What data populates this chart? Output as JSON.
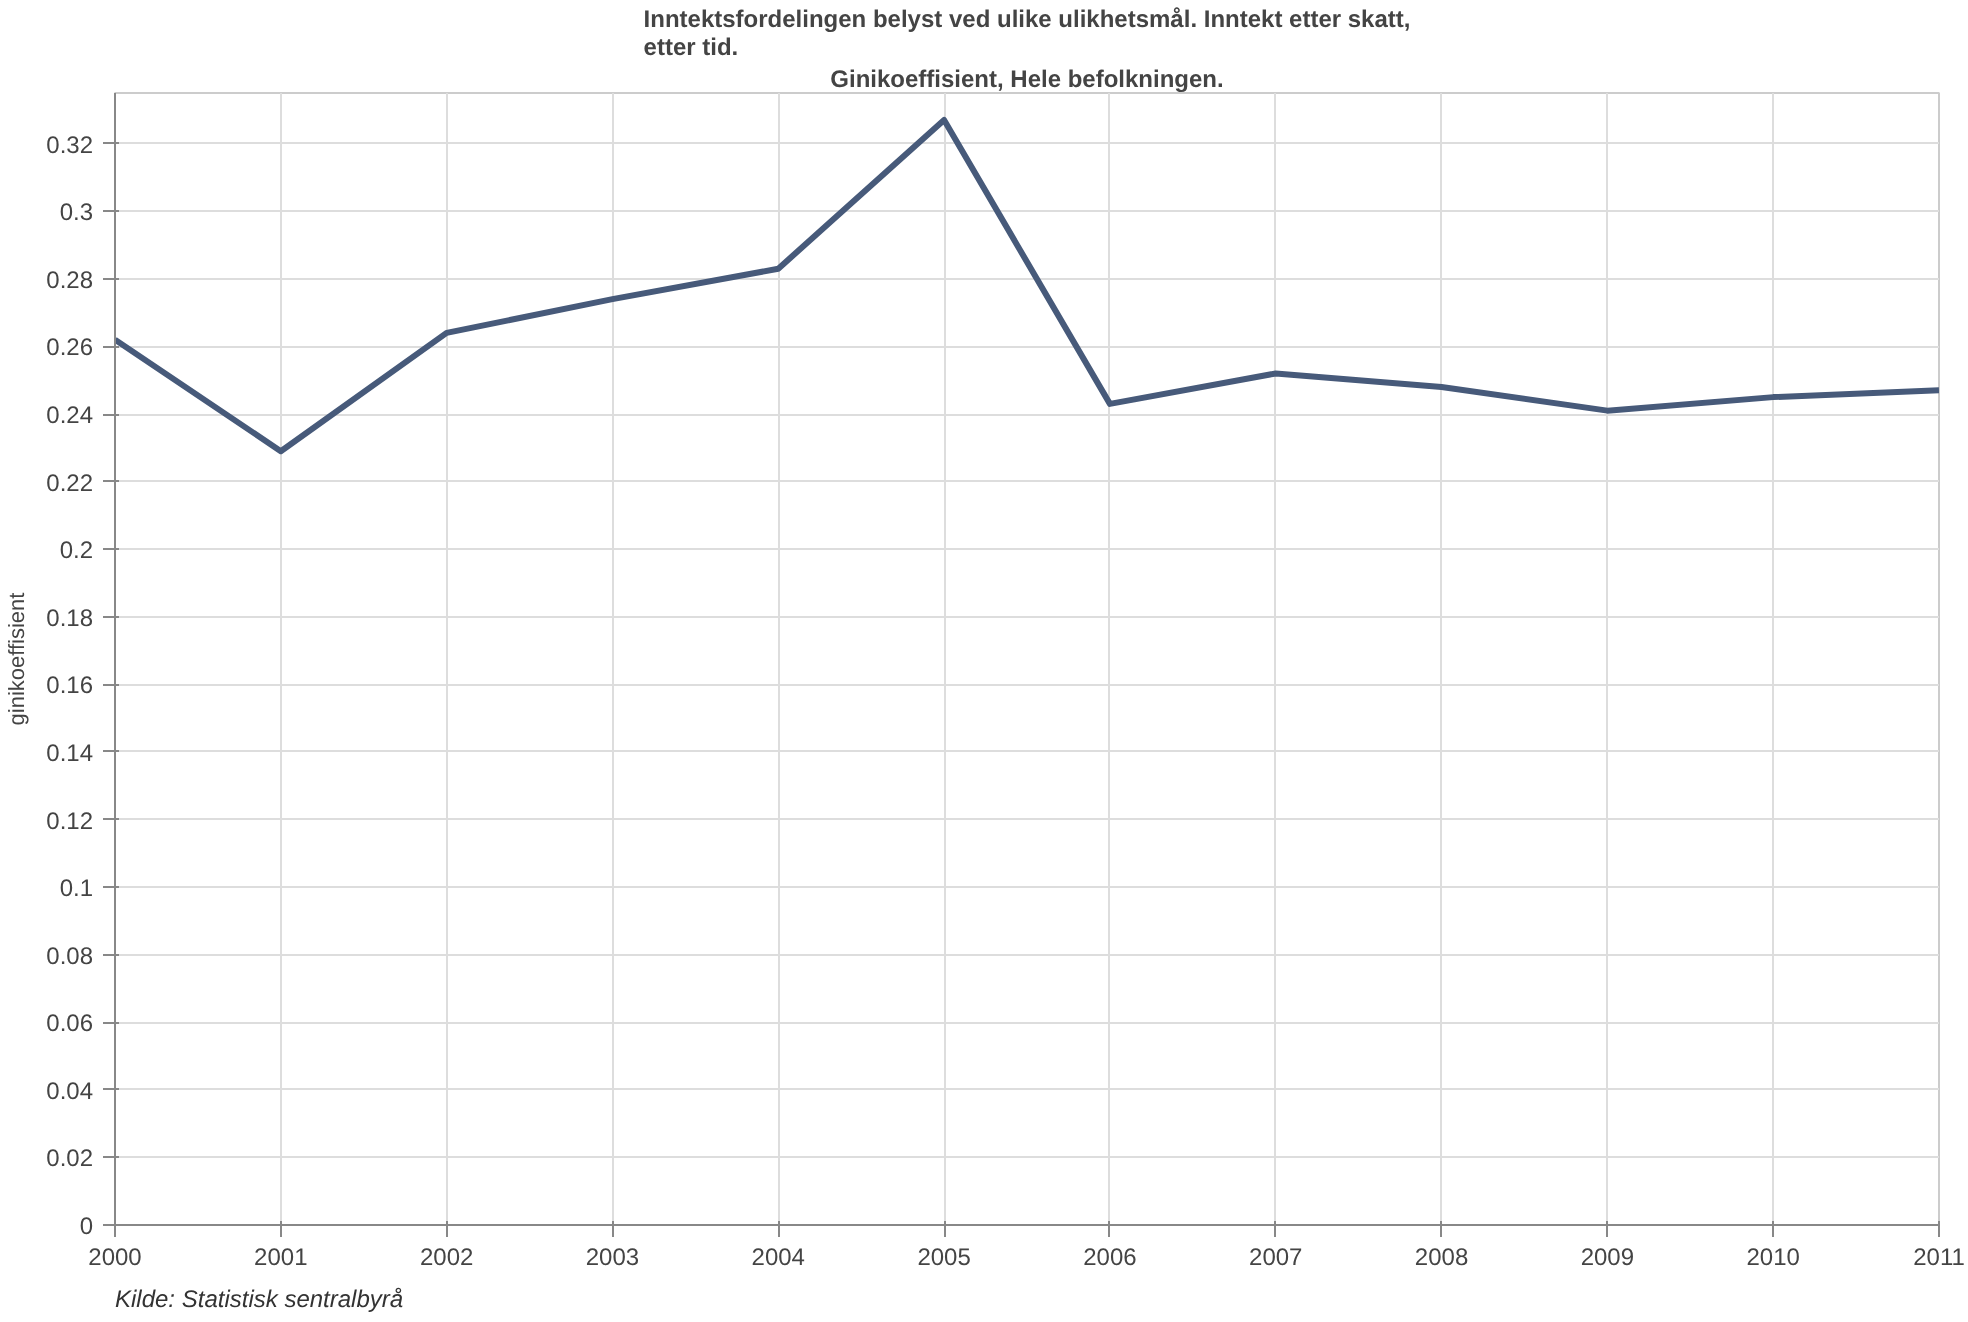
{
  "chart_data": {
    "type": "line",
    "title": "Inntektsfordelingen belyst ved ulike ulikhetsmål. Inntekt etter skatt,\netter tid.",
    "subtitle": "Ginikoeffisient, Hele befolkningen.",
    "ylabel": "ginikoeffisient",
    "annotations": [
      "Kilde: Statistisk sentralbyrå"
    ],
    "x": [
      2000,
      2001,
      2002,
      2003,
      2004,
      2005,
      2006,
      2007,
      2008,
      2009,
      2010,
      2011
    ],
    "series": [
      {
        "color": "#475a7a",
        "values": [
          0.262,
          0.229,
          0.264,
          0.274,
          0.283,
          0.327,
          0.243,
          0.252,
          0.248,
          0.241,
          0.245,
          0.247
        ]
      }
    ],
    "xlim": [
      2000,
      2011
    ],
    "xticks": [
      2000,
      2001,
      2002,
      2003,
      2004,
      2005,
      2006,
      2007,
      2008,
      2009,
      2010,
      2011
    ],
    "ylim": [
      0,
      0.335
    ],
    "yticks": [
      0,
      0.02,
      0.04,
      0.06,
      0.08,
      0.1,
      0.12,
      0.14,
      0.16,
      0.18,
      0.2,
      0.22,
      0.24,
      0.26,
      0.28,
      0.3,
      0.32
    ],
    "grid": true,
    "marker": "none",
    "line_style": "solid"
  }
}
